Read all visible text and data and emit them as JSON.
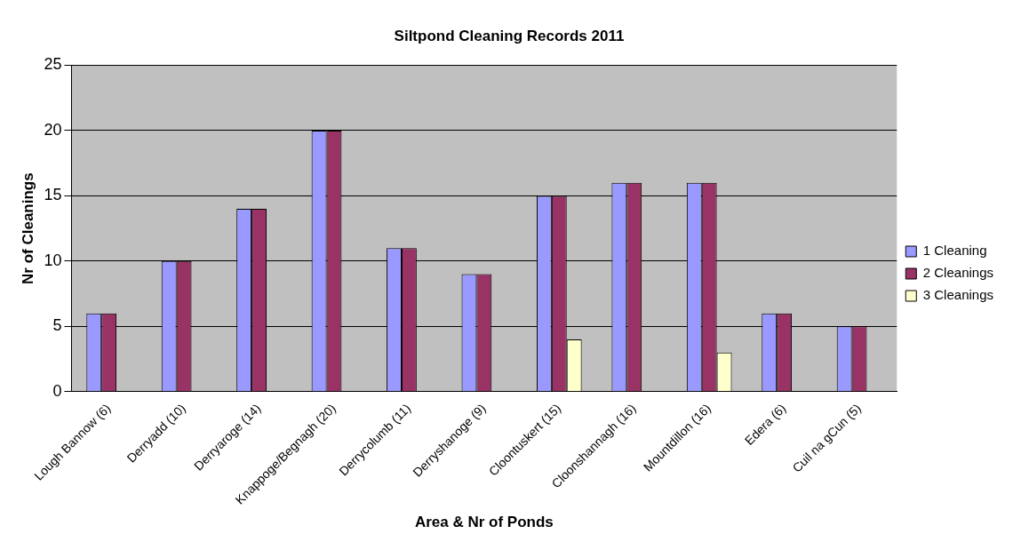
{
  "chart_data": {
    "type": "bar",
    "title": "Siltpond Cleaning Records 2011",
    "xlabel": "Area & Nr of Ponds",
    "ylabel": "Nr of Cleanings",
    "categories": [
      "Lough Bannow (6)",
      "Derryadd (10)",
      "Derryaroge (14)",
      "Knappoge/Begnagh (20)",
      "Derrycolumb (11)",
      "Derryshanoge (9)",
      "Cloontuskert (15)",
      "Cloonshannagh (16)",
      "Mountdillon (16)",
      "Edera (6)",
      "Cuil na gCun (5)"
    ],
    "series": [
      {
        "name": "1 Cleaning",
        "color": "#9999ff",
        "values": [
          6,
          10,
          14,
          20,
          11,
          9,
          15,
          16,
          16,
          6,
          5
        ]
      },
      {
        "name": "2 Cleanings",
        "color": "#993366",
        "values": [
          6,
          10,
          14,
          20,
          11,
          9,
          15,
          16,
          16,
          6,
          5
        ]
      },
      {
        "name": "3 Cleanings",
        "color": "#ffffcc",
        "values": [
          null,
          null,
          null,
          null,
          null,
          null,
          4,
          null,
          3,
          null,
          null
        ]
      }
    ],
    "ylim": [
      0,
      25
    ],
    "yticks": [
      0,
      5,
      10,
      15,
      20,
      25
    ],
    "grid": "y",
    "legend": "right"
  }
}
